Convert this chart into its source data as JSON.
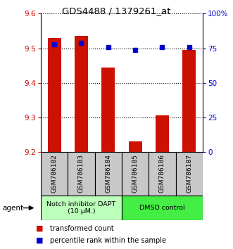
{
  "title": "GDS4488 / 1379261_at",
  "categories": [
    "GSM786182",
    "GSM786183",
    "GSM786184",
    "GSM786185",
    "GSM786186",
    "GSM786187"
  ],
  "red_values": [
    9.53,
    9.535,
    9.445,
    9.23,
    9.305,
    9.495
  ],
  "blue_values_pct": [
    78,
    79,
    76,
    74,
    76,
    76
  ],
  "ylim_left": [
    9.2,
    9.6
  ],
  "ylim_right": [
    0,
    100
  ],
  "yticks_left": [
    9.2,
    9.3,
    9.4,
    9.5,
    9.6
  ],
  "yticks_right": [
    0,
    25,
    50,
    75,
    100
  ],
  "ytick_labels_right": [
    "0",
    "25",
    "50",
    "75",
    "100%"
  ],
  "groups": [
    {
      "label": "Notch inhibitor DAPT\n(10 μM.)",
      "indices": [
        0,
        1,
        2
      ],
      "color": "#bbffbb"
    },
    {
      "label": "DMSO control",
      "indices": [
        3,
        4,
        5
      ],
      "color": "#44ee44"
    }
  ],
  "bar_color": "#cc1100",
  "dot_color": "#0000cc",
  "grid_color": "#000000",
  "axis_label_color_left": "#cc0000",
  "axis_label_color_right": "#0000cc",
  "legend_red_label": "transformed count",
  "legend_blue_label": "percentile rank within the sample",
  "agent_label": "agent",
  "bar_width": 0.5
}
